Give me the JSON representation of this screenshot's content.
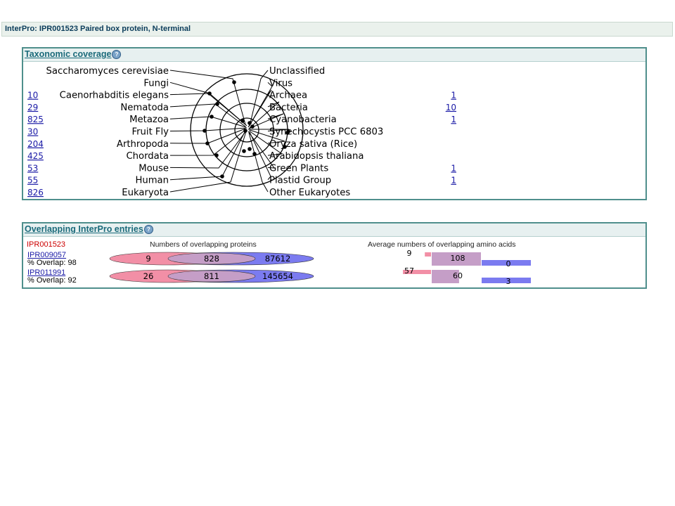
{
  "header": {
    "title": "InterPro: IPR001523 Paired box protein, N-terminal"
  },
  "taxonomy": {
    "title": "Taxonomic coverage",
    "left_items": [
      {
        "label": "Saccharomyces cerevisiae",
        "count": ""
      },
      {
        "label": "Fungi",
        "count": ""
      },
      {
        "label": "Caenorhabditis elegans",
        "count": "10"
      },
      {
        "label": "Nematoda",
        "count": "29"
      },
      {
        "label": "Metazoa",
        "count": "825"
      },
      {
        "label": "Fruit Fly",
        "count": "30"
      },
      {
        "label": "Arthropoda",
        "count": "204"
      },
      {
        "label": "Chordata",
        "count": "425"
      },
      {
        "label": "Mouse",
        "count": "53"
      },
      {
        "label": "Human",
        "count": "55"
      },
      {
        "label": "Eukaryota",
        "count": "826"
      }
    ],
    "right_items": [
      {
        "label": "Unclassified",
        "count": ""
      },
      {
        "label": "Virus",
        "count": ""
      },
      {
        "label": "Archaea",
        "count": "1"
      },
      {
        "label": "Bacteria",
        "count": "10"
      },
      {
        "label": "Cyanobacteria",
        "count": "1"
      },
      {
        "label": "Synechocystis PCC 6803",
        "count": ""
      },
      {
        "label": "Oryza sativa (Rice)",
        "count": ""
      },
      {
        "label": "Arabidopsis thaliana",
        "count": ""
      },
      {
        "label": "Green Plants",
        "count": "1"
      },
      {
        "label": "Plastid Group",
        "count": "1"
      },
      {
        "label": "Other Eukaryotes",
        "count": ""
      }
    ]
  },
  "overlap": {
    "title": "Overlapping InterPro entries",
    "entry_id": "IPR001523",
    "proteins_header": "Numbers of overlapping proteins",
    "aa_header": "Average numbers of overlapping amino acids",
    "overlap_prefix": "% Overlap:",
    "rows": [
      {
        "id": "IPR009057",
        "pct": "98",
        "proteins": [
          "9",
          "828",
          "87612"
        ],
        "aa": [
          "9",
          "108",
          "0"
        ]
      },
      {
        "id": "IPR011991",
        "pct": "92",
        "proteins": [
          "26",
          "811",
          "145654"
        ],
        "aa": [
          "57",
          "60",
          "3"
        ]
      }
    ]
  },
  "colors": {
    "pink": "#f28fa6",
    "purple": "#c59ec7",
    "blue": "#7b7bf0",
    "frame": "#4f8f8c"
  }
}
